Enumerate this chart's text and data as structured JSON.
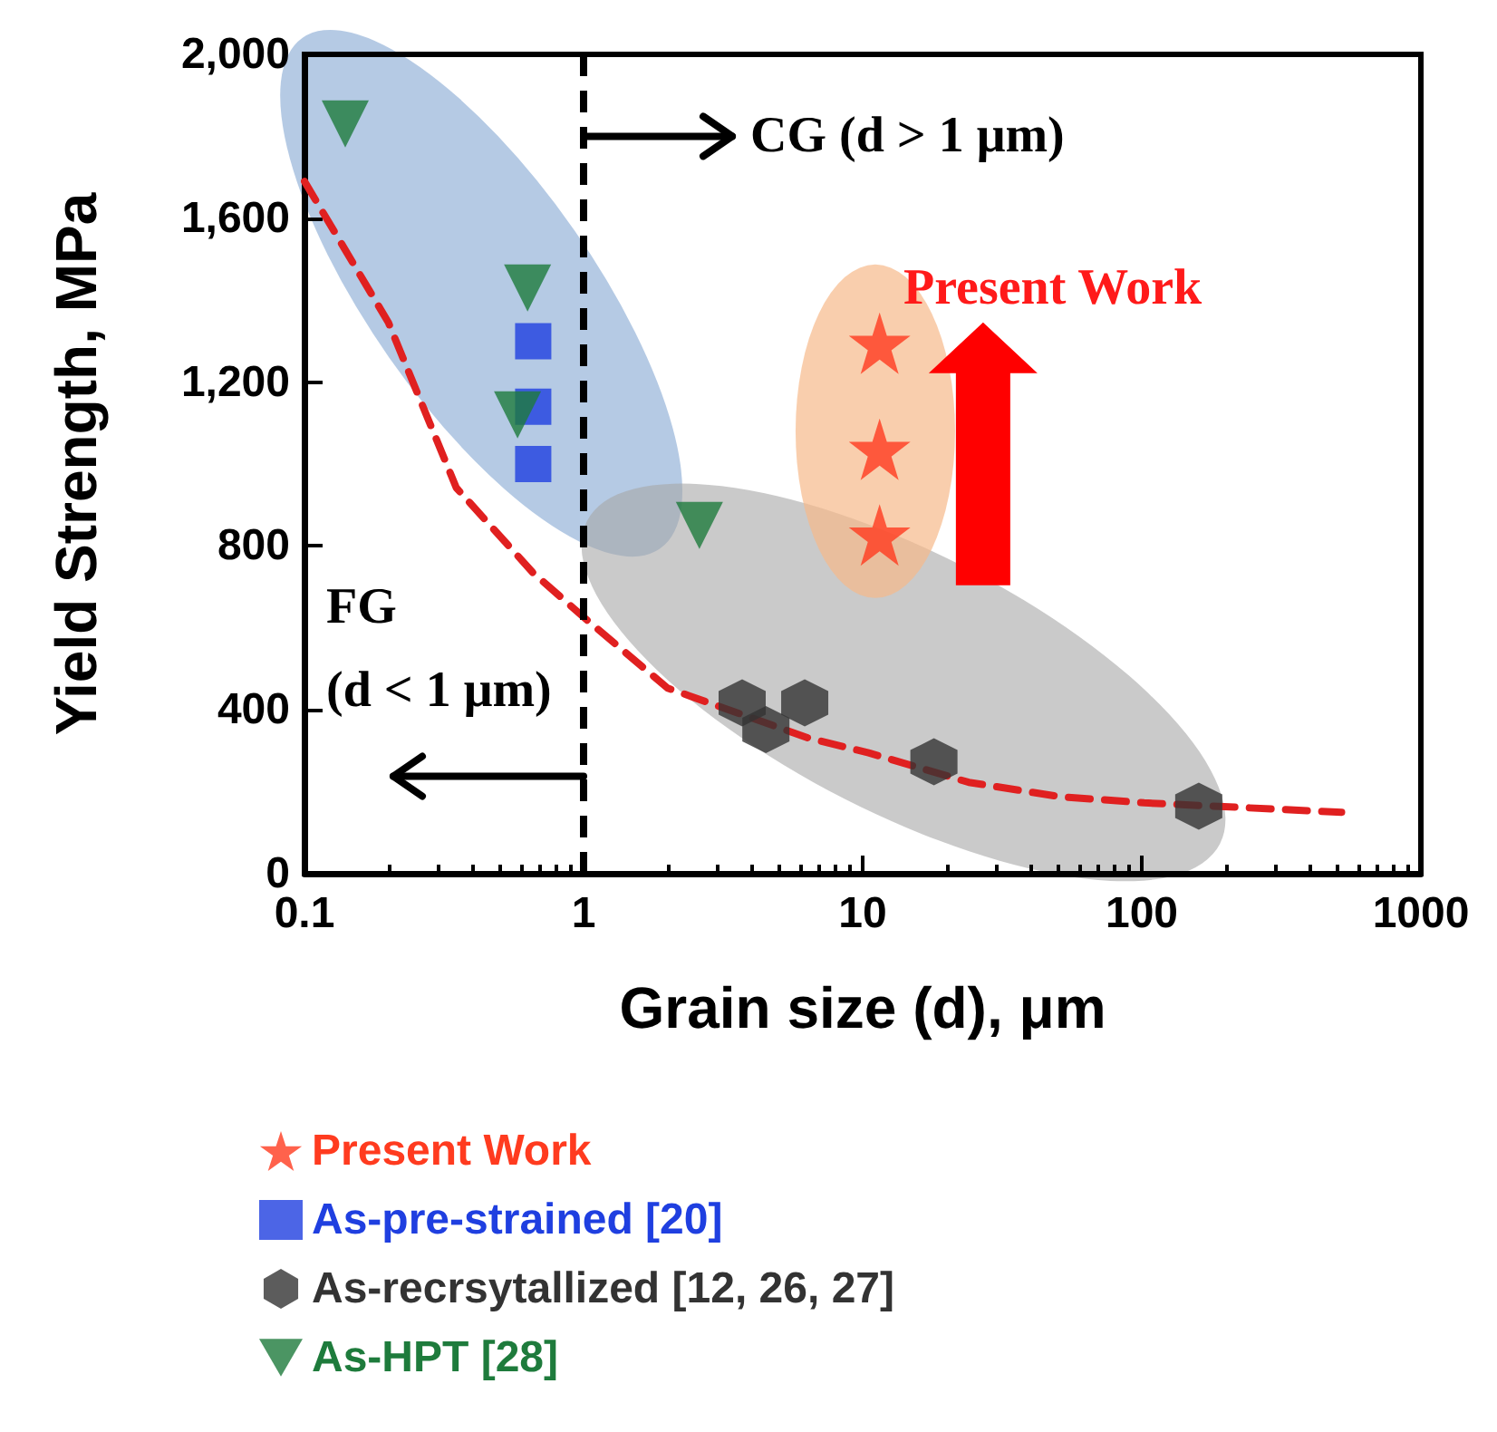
{
  "chart_data": {
    "type": "scatter",
    "xlabel": "Grain size (d), μm",
    "ylabel": "Yield Strength, MPa",
    "annotations": [
      {
        "text": "CG (d > 1 μm)",
        "x": 1,
        "y": 1800
      },
      {
        "text": "FG\n(d < 1 μm)",
        "x": 1,
        "y": 238
      },
      "Present Work"
    ],
    "log": "x",
    "xlim": [
      0.1,
      1000
    ],
    "xticks": [
      0.1,
      1,
      10,
      100,
      1000
    ],
    "ylim": [
      0,
      2000
    ],
    "yticks": [
      0,
      400,
      800,
      {
        "value": 1200,
        "label": "1,200"
      },
      {
        "value": 1600,
        "label": "1,600"
      },
      {
        "value": 2000,
        "label": "2,000"
      }
    ],
    "grid": false,
    "legend": "bottom",
    "ref_lines": [
      {
        "axis": "x",
        "value": 1,
        "color": "#000000",
        "line_style": "dashed"
      }
    ],
    "series": [
      {
        "type": "line",
        "color": "#e02020",
        "line_style": "dashed",
        "marker": "none",
        "x": [
          0.1,
          0.2,
          0.35,
          0.66,
          1.03,
          2,
          6.4,
          10.5,
          24,
          51,
          102,
          480,
          520
        ],
        "values": [
          1690,
          1345,
          942,
          734,
          619,
          453,
          331,
          295,
          223,
          188,
          173,
          151,
          150
        ]
      },
      {
        "name": "Present Work",
        "color": "#ff3b1f",
        "marker": "star",
        "x": [
          11.5,
          11.5,
          11.5
        ],
        "values": [
          1295,
          1036,
          827
        ]
      },
      {
        "name": "As-pre-strained [20]",
        "color": "#1f3fe0",
        "marker": "square",
        "x": [
          0.66,
          0.66,
          0.66
        ],
        "values": [
          1300,
          1140,
          1000
        ]
      },
      {
        "name": "As-recrsytallized [12, 26, 27]",
        "color": "#333333",
        "x": [
          3.7,
          4.5,
          6.2,
          18,
          160
        ],
        "values": [
          417,
          352,
          417,
          273,
          165
        ]
      },
      {
        "name": "As-HPT [28]",
        "color": "#1e7b3c",
        "marker": "triangle",
        "x": [
          0.14,
          0.63,
          0.58,
          2.6
        ],
        "values": [
          1830,
          1430,
          1120,
          850
        ]
      }
    ]
  }
}
